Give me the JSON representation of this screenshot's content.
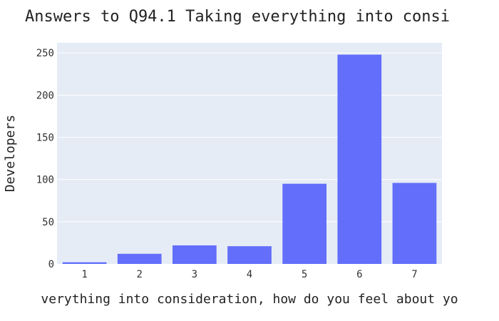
{
  "chart_data": {
    "type": "bar",
    "title": "Answers to Q94.1 Taking everything into consi",
    "xlabel": "verything into consideration, how do you feel about yo",
    "ylabel": "Developers",
    "categories": [
      "1",
      "2",
      "3",
      "4",
      "5",
      "6",
      "7"
    ],
    "values": [
      2,
      12,
      22,
      21,
      95,
      248,
      96
    ],
    "ylim": [
      0,
      262
    ],
    "yticks": [
      0,
      50,
      100,
      150,
      200,
      250
    ],
    "grid": true,
    "legend": "none",
    "bar_color": "#636efa",
    "plot_background": "#e5ecf6"
  }
}
